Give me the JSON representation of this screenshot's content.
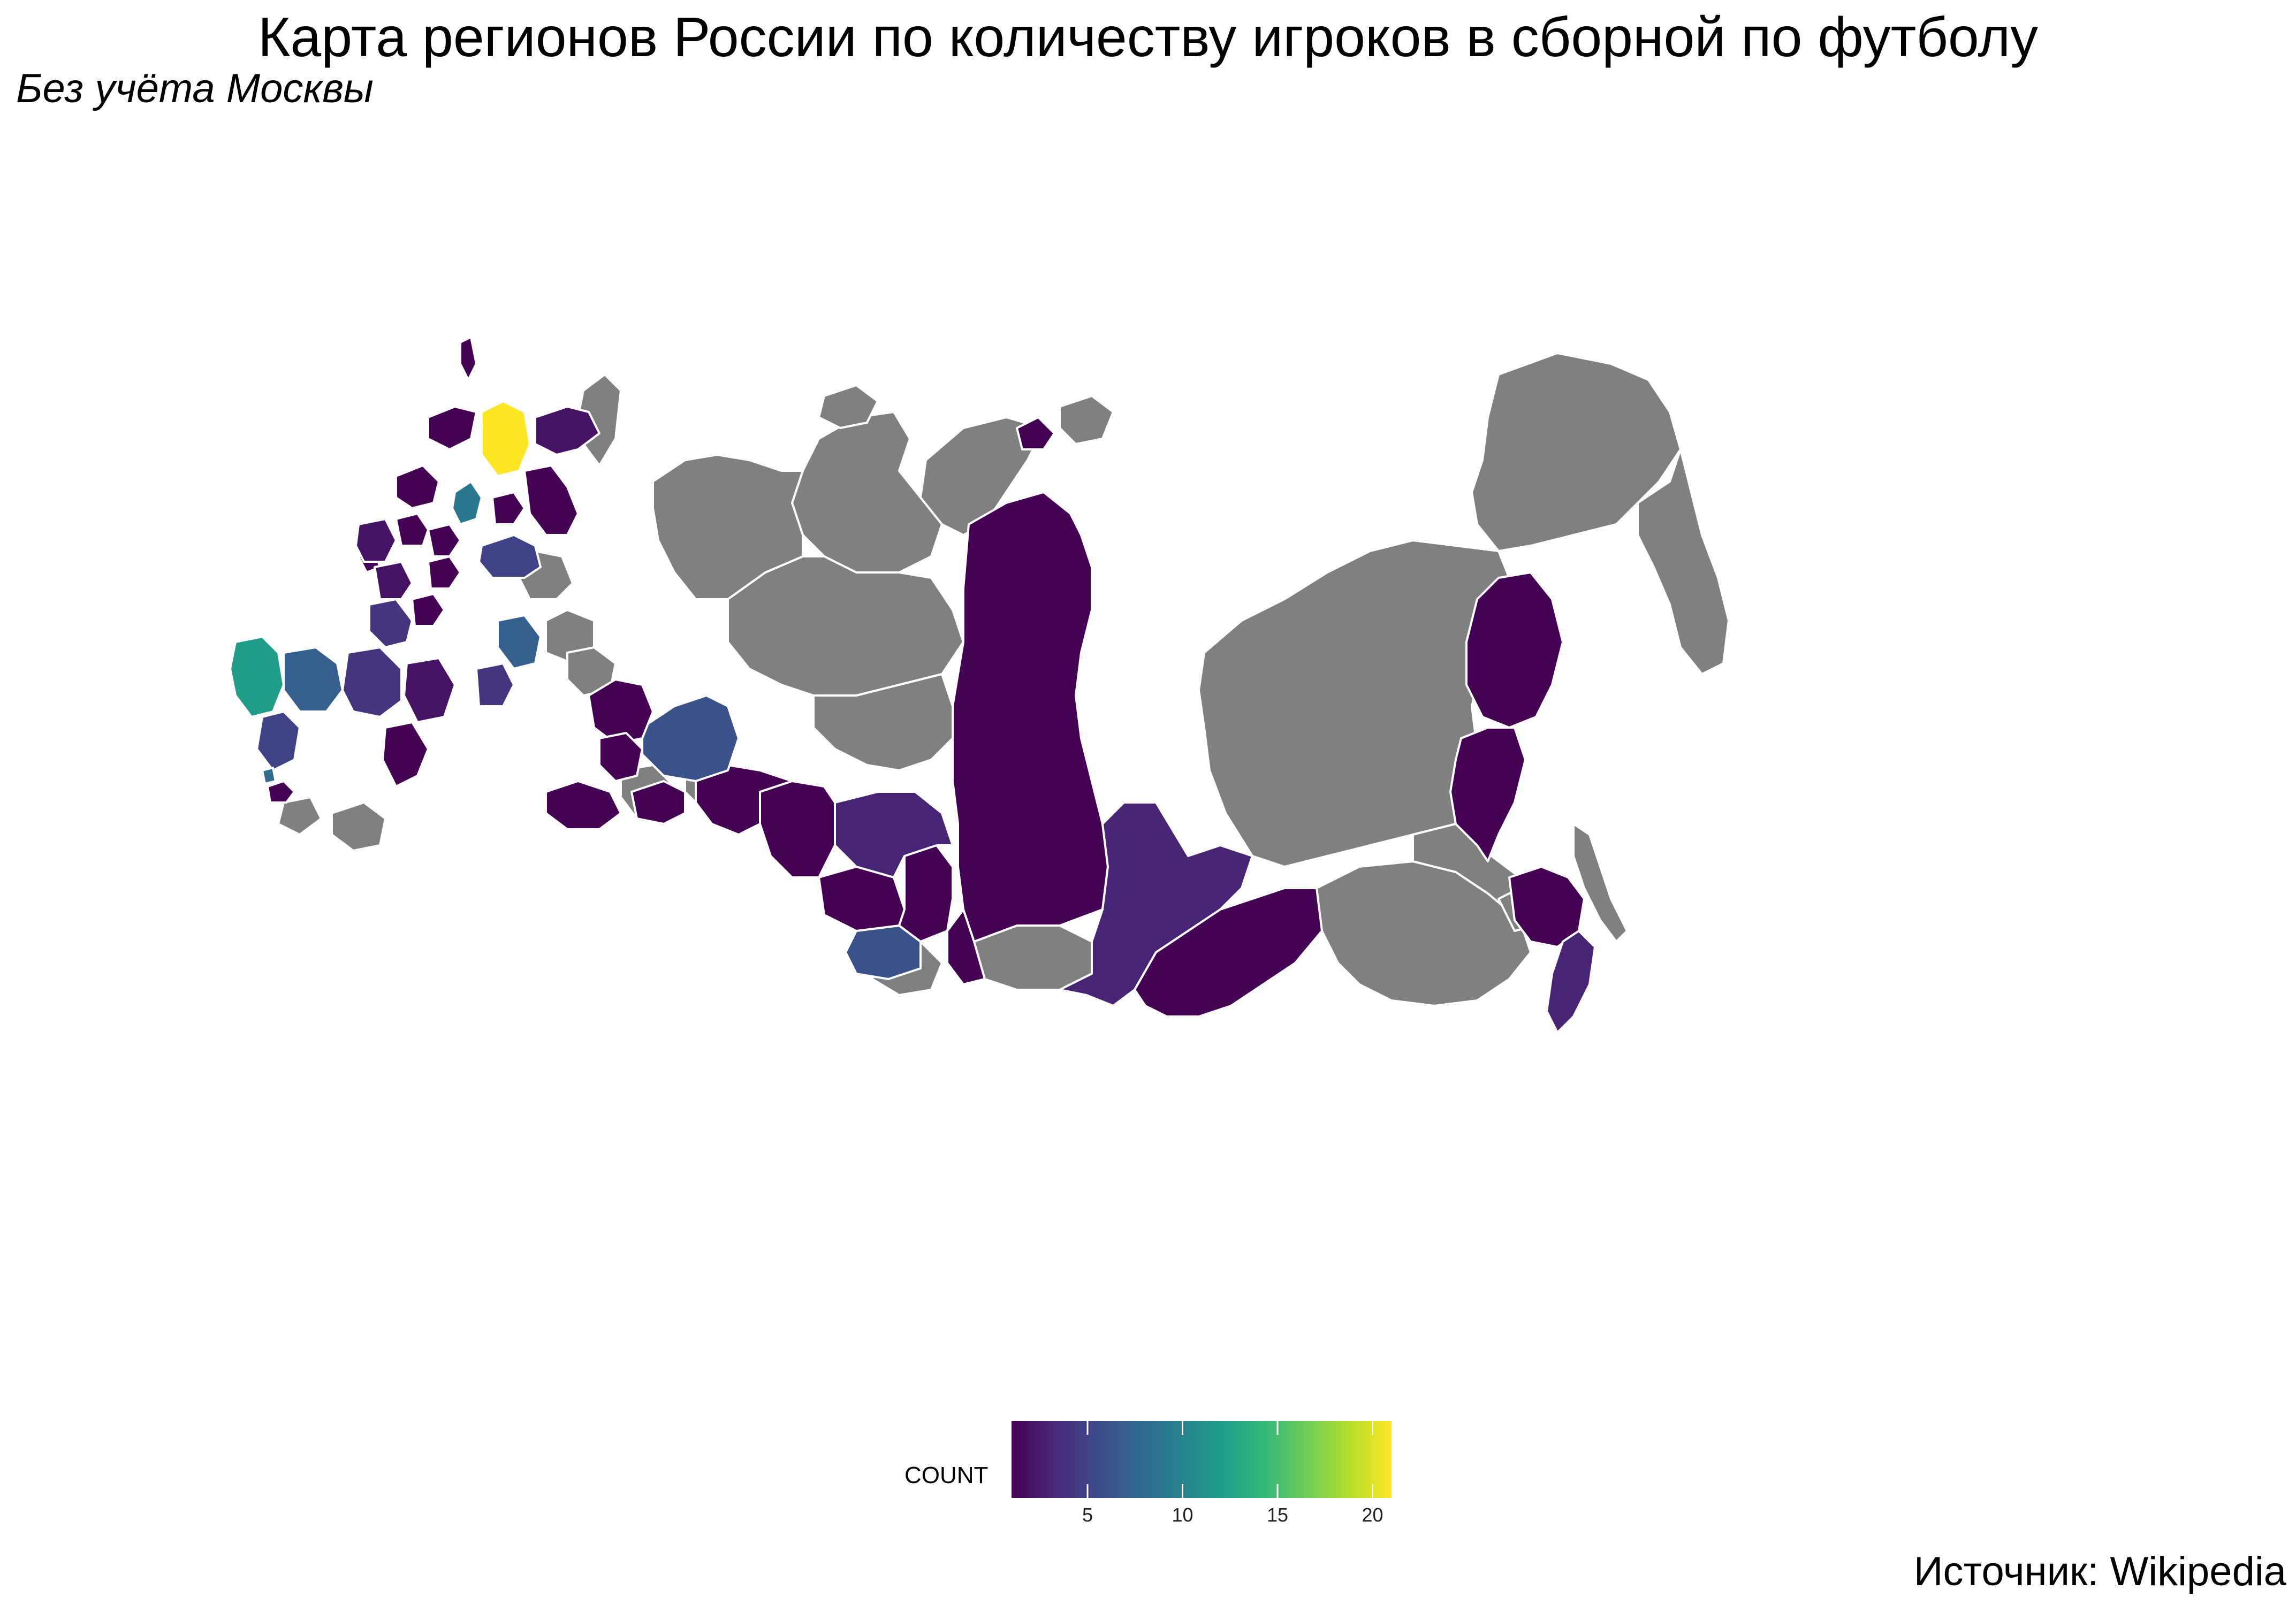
{
  "title": "Карта регионов России по количеству игроков в сборной по футболу",
  "subtitle": "Без учёта Москвы",
  "caption": "Источник: Wikipedia",
  "colors": {
    "no_data": "#808080",
    "border": "#ffffff",
    "viridis": [
      "#440154",
      "#482878",
      "#3e4989",
      "#31688e",
      "#26828e",
      "#1f9e89",
      "#35b779",
      "#6ece58",
      "#b5de2b",
      "#fde725"
    ]
  },
  "legend": {
    "title": "COUNT",
    "min": 1,
    "max": 21,
    "ticks": [
      5,
      10,
      15,
      20
    ],
    "tick_labels": [
      "5",
      "10",
      "15",
      "20"
    ]
  },
  "map_data": {
    "type": "choropleth",
    "variable": "COUNT",
    "regions_with_data_shown_by_fill": [
      {
        "id": "kaliningrad",
        "value": 1
      },
      {
        "id": "murmansk-west",
        "value": 1
      },
      {
        "id": "karelia-north",
        "value": 21
      },
      {
        "id": "arkhangelsk-north",
        "value": 2
      },
      {
        "id": "arkhangelsk-south",
        "value": 1
      },
      {
        "id": "leningrad",
        "value": 1
      },
      {
        "id": "vologda",
        "value": 9
      },
      {
        "id": "yaroslavl",
        "value": 1
      },
      {
        "id": "smolensk",
        "value": 2
      },
      {
        "id": "bryansk",
        "value": 2
      },
      {
        "id": "tver",
        "value": 1
      },
      {
        "id": "kaluga",
        "value": 1
      },
      {
        "id": "vladimir",
        "value": 1
      },
      {
        "id": "nizhny",
        "value": 5
      },
      {
        "id": "kursk",
        "value": 4
      },
      {
        "id": "belgorod-east",
        "value": 1
      },
      {
        "id": "krasnodar",
        "value": 12
      },
      {
        "id": "rostov",
        "value": 7
      },
      {
        "id": "voronezh",
        "value": 4
      },
      {
        "id": "saratov",
        "value": 2
      },
      {
        "id": "samara",
        "value": 7
      },
      {
        "id": "tatarstan",
        "value": 4
      },
      {
        "id": "stavropol",
        "value": 5
      },
      {
        "id": "adygea",
        "value": 8
      },
      {
        "id": "dagestan",
        "value": 1
      },
      {
        "id": "volgograd-south",
        "value": 1
      },
      {
        "id": "bashkortostan",
        "value": 1
      },
      {
        "id": "perm",
        "value": 1
      },
      {
        "id": "sverdlovsk",
        "value": 6
      },
      {
        "id": "orenburg",
        "value": 1
      },
      {
        "id": "chelyabinsk",
        "value": 1
      },
      {
        "id": "tyumen-south",
        "value": 1
      },
      {
        "id": "omsk",
        "value": 1
      },
      {
        "id": "novosibirsk",
        "value": 3
      },
      {
        "id": "kemerovo",
        "value": 1
      },
      {
        "id": "altai-krai",
        "value": 1
      },
      {
        "id": "altai-rep",
        "value": 6
      },
      {
        "id": "khakassia",
        "value": 1
      },
      {
        "id": "krasnoyarsk",
        "value": 1
      },
      {
        "id": "taimyr-islands",
        "value": 1
      },
      {
        "id": "irkutsk",
        "value": 3
      },
      {
        "id": "buryatia",
        "value": 1
      },
      {
        "id": "magadan",
        "value": 1
      },
      {
        "id": "khabarovsk",
        "value": 1
      },
      {
        "id": "amur-east",
        "value": 1
      },
      {
        "id": "primorye",
        "value": 3
      },
      {
        "id": "novaya-zemlya",
        "value": 1
      }
    ]
  }
}
